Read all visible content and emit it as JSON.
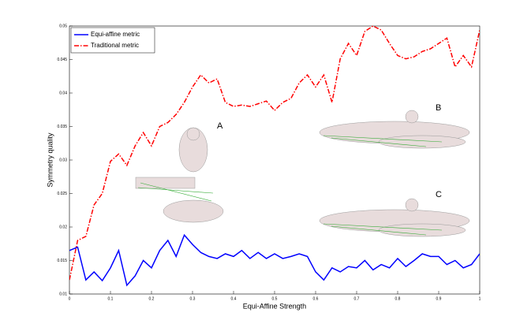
{
  "chart_data": {
    "type": "line",
    "xlabel": "Equi-Affine Strength",
    "ylabel": "Symmetry quality",
    "x": [
      0,
      0.02,
      0.04,
      0.06,
      0.08,
      0.1,
      0.12,
      0.14,
      0.16,
      0.18,
      0.2,
      0.22,
      0.24,
      0.26,
      0.28,
      0.3,
      0.32,
      0.34,
      0.36,
      0.38,
      0.4,
      0.42,
      0.44,
      0.46,
      0.48,
      0.5,
      0.52,
      0.54,
      0.56,
      0.58,
      0.6,
      0.62,
      0.64,
      0.66,
      0.68,
      0.7,
      0.72,
      0.74,
      0.76,
      0.78,
      0.8,
      0.82,
      0.84,
      0.86,
      0.88,
      0.9,
      0.92,
      0.94,
      0.96,
      0.98,
      1
    ],
    "series": [
      {
        "name": "Equi-affine metric",
        "color": "#0000ff",
        "dash": "none",
        "values": [
          0.0165,
          0.017,
          0.0121,
          0.0133,
          0.012,
          0.0139,
          0.0165,
          0.0113,
          0.0127,
          0.015,
          0.0139,
          0.0165,
          0.018,
          0.0156,
          0.0188,
          0.0174,
          0.0162,
          0.0156,
          0.0153,
          0.016,
          0.0156,
          0.0165,
          0.0153,
          0.0162,
          0.0153,
          0.016,
          0.0153,
          0.0156,
          0.016,
          0.0156,
          0.0133,
          0.0121,
          0.0139,
          0.0133,
          0.0141,
          0.0139,
          0.015,
          0.0136,
          0.0144,
          0.0139,
          0.0153,
          0.0141,
          0.015,
          0.016,
          0.0156,
          0.0156,
          0.0144,
          0.015,
          0.0139,
          0.0144,
          0.016
        ]
      },
      {
        "name": "Traditional metric",
        "color": "#ff0000",
        "dash": "dashdot",
        "values": [
          0.0121,
          0.018,
          0.0186,
          0.0233,
          0.025,
          0.0298,
          0.0309,
          0.0292,
          0.0321,
          0.0341,
          0.0321,
          0.035,
          0.0356,
          0.0368,
          0.0386,
          0.0409,
          0.0427,
          0.0415,
          0.0421,
          0.0386,
          0.038,
          0.0382,
          0.038,
          0.0384,
          0.0388,
          0.0374,
          0.0386,
          0.0392,
          0.0415,
          0.0427,
          0.0409,
          0.0427,
          0.0386,
          0.0451,
          0.0474,
          0.0456,
          0.0492,
          0.05,
          0.0494,
          0.0474,
          0.0456,
          0.0451,
          0.0454,
          0.0462,
          0.0466,
          0.0474,
          0.0482,
          0.0439,
          0.0456,
          0.0439,
          0.0494
        ]
      }
    ],
    "xlim": [
      0,
      1
    ],
    "xticks": [
      0,
      0.1,
      0.2,
      0.3,
      0.4,
      0.5,
      0.6,
      0.7,
      0.8,
      0.9,
      1
    ],
    "ylim": [
      0.01,
      0.05
    ],
    "yticks": [
      0.01,
      0.015,
      0.02,
      0.025,
      0.03,
      0.035,
      0.04,
      0.045,
      0.05
    ],
    "legend": "upper left",
    "annotations": [
      "A",
      "B",
      "C"
    ]
  }
}
